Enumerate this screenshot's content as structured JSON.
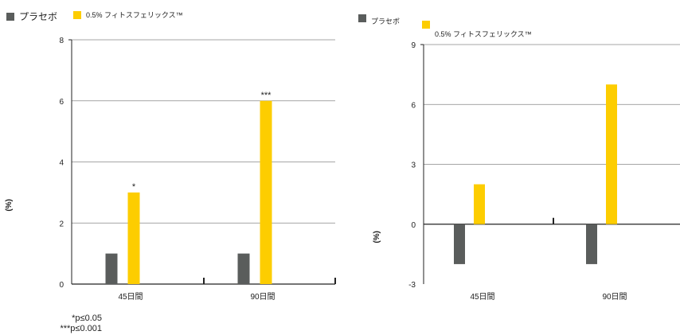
{
  "colors": {
    "placebo": "#5a5d5c",
    "treatment": "#fdcd00",
    "axis": "#222222",
    "grid": "#888888"
  },
  "legend": {
    "placebo_label": "プラセボ",
    "treatment_label": "0.5% フィトスフェリックス™"
  },
  "footnotes": {
    "p05": "*p≤0.05",
    "p001": "***p≤0.001"
  },
  "ylabel_left": "(%)",
  "ylabel_right": "(%)",
  "chart_data": [
    {
      "type": "bar",
      "categories": [
        "45日間",
        "90日間"
      ],
      "series": [
        {
          "name": "プラセボ",
          "values": [
            1,
            1
          ]
        },
        {
          "name": "0.5% フィトスフェリックス™",
          "values": [
            3,
            6
          ]
        }
      ],
      "annotations": [
        "*",
        "***"
      ],
      "ylim": [
        0,
        8
      ],
      "yticks": [
        0,
        2,
        4,
        6,
        8
      ],
      "grid": true,
      "legend": "top-left"
    },
    {
      "type": "bar",
      "categories": [
        "45日間",
        "90日間"
      ],
      "series": [
        {
          "name": "プラセボ",
          "values": [
            -2,
            -2
          ]
        },
        {
          "name": "0.5% フィトスフェリックス™",
          "values": [
            2,
            7
          ]
        }
      ],
      "ylim": [
        -3,
        9
      ],
      "yticks": [
        -3,
        0,
        3,
        6,
        9
      ],
      "grid": true,
      "legend": "top-left"
    }
  ]
}
